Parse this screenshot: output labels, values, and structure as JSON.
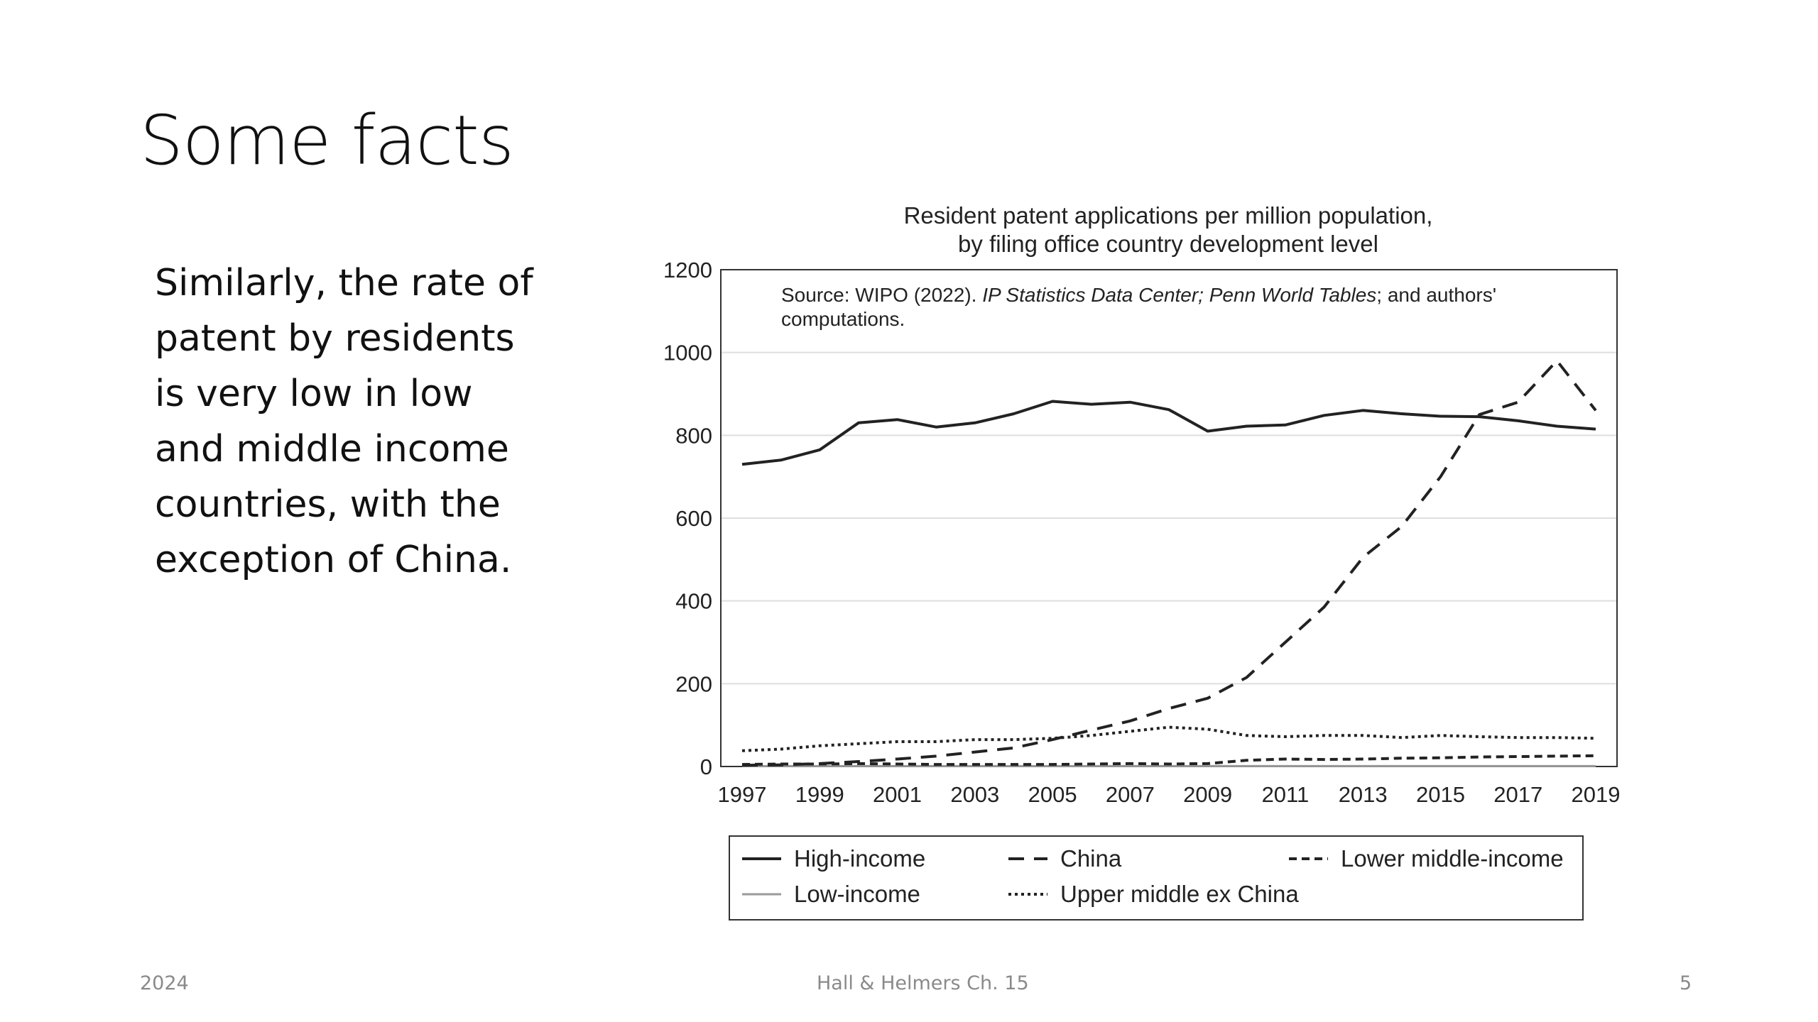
{
  "slide": {
    "title": "Some facts",
    "body": "Similarly, the rate of patent by residents is very low in low and middle income countries, with the exception of China.",
    "footer_left": "2024",
    "footer_center": "Hall & Helmers Ch. 15",
    "footer_right": "5"
  },
  "chart_data": {
    "type": "line",
    "title": "Resident patent applications per million population,",
    "subtitle": "by filing office country development level",
    "source_prefix": "Source: WIPO (2022). ",
    "source_italic_1": "IP Statistics Data Center; Penn World Tables",
    "source_suffix": "; and authors'",
    "source_line2": "computations.",
    "xlabel": "",
    "ylabel": "",
    "x": [
      1997,
      1998,
      1999,
      2000,
      2001,
      2002,
      2003,
      2004,
      2005,
      2006,
      2007,
      2008,
      2009,
      2010,
      2011,
      2012,
      2013,
      2014,
      2015,
      2016,
      2017,
      2018,
      2019
    ],
    "x_ticks": [
      "1997",
      "1999",
      "2001",
      "2003",
      "2005",
      "2007",
      "2009",
      "2011",
      "2013",
      "2015",
      "2017",
      "2019"
    ],
    "y_ticks": [
      "0",
      "200",
      "400",
      "600",
      "800",
      "1000",
      "1200"
    ],
    "ylim": [
      0,
      1200
    ],
    "grid": true,
    "legend_position": "bottom",
    "series": [
      {
        "name": "High-income",
        "style": "solid",
        "color": "#222222",
        "values": [
          730,
          740,
          765,
          830,
          838,
          820,
          830,
          852,
          882,
          875,
          880,
          862,
          810,
          822,
          825,
          848,
          860,
          852,
          846,
          845,
          835,
          822,
          815
        ]
      },
      {
        "name": "China",
        "style": "dashed",
        "color": "#222222",
        "values": [
          3,
          4,
          7,
          12,
          18,
          25,
          35,
          45,
          65,
          88,
          110,
          140,
          165,
          215,
          300,
          385,
          505,
          580,
          700,
          850,
          880,
          980,
          860
        ]
      },
      {
        "name": "Lower middle-income",
        "style": "dashed-short",
        "color": "#222222",
        "values": [
          5,
          6,
          6,
          7,
          6,
          5,
          5,
          5,
          5,
          6,
          7,
          6,
          7,
          15,
          18,
          17,
          18,
          20,
          21,
          23,
          24,
          25,
          26
        ]
      },
      {
        "name": "Low-income",
        "style": "solid-thin",
        "color": "#9a9a9a",
        "values": [
          1,
          1,
          1,
          1,
          1,
          1,
          1,
          1,
          1,
          1,
          1,
          1,
          1,
          1,
          1,
          1,
          1,
          1,
          1,
          1,
          1,
          1,
          1
        ]
      },
      {
        "name": "Upper middle ex China",
        "style": "dotted",
        "color": "#222222",
        "values": [
          38,
          42,
          50,
          55,
          60,
          60,
          65,
          65,
          68,
          75,
          85,
          95,
          90,
          75,
          72,
          75,
          75,
          70,
          75,
          72,
          70,
          70,
          68
        ]
      }
    ]
  }
}
